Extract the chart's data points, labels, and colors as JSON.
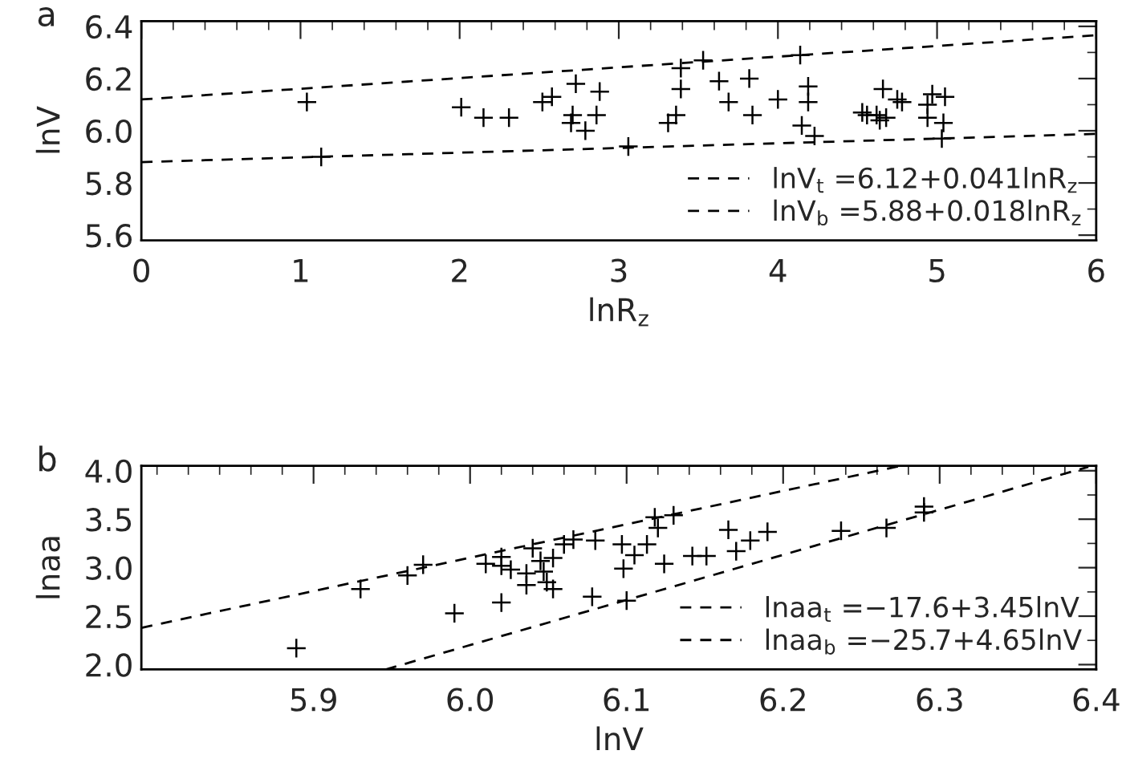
{
  "chart_data": [
    {
      "type": "scatter",
      "xlabel": "lnR$_{z}$",
      "ylabel": "lnV",
      "annotations": [
        "a"
      ],
      "xlim": [
        0,
        6
      ],
      "xticks": [
        0,
        1,
        2,
        3,
        4,
        5,
        6
      ],
      "ylim": [
        5.58,
        6.42
      ],
      "yticks": [
        5.6,
        5.8,
        {
          "value": 6,
          "label": "6.0"
        },
        6.2,
        6.4
      ],
      "grid": false,
      "legend": "bottom right",
      "marker": "cross",
      "series": [
        {
          "color": "#000000",
          "x": [
            1.04,
            1.13,
            2.01,
            2.15,
            2.31,
            2.52,
            2.58,
            2.73,
            2.88,
            2.71,
            2.7,
            2.79,
            2.86,
            3.06,
            3.31,
            3.36,
            3.39,
            3.39,
            3.53,
            3.63,
            3.69,
            3.82,
            3.84,
            4.0,
            4.14,
            4.19,
            4.19,
            4.15,
            4.23,
            4.53,
            4.56,
            4.62,
            4.64,
            4.68,
            4.66,
            4.75,
            4.78,
            4.94,
            4.94,
            4.97,
            5.05,
            5.04,
            5.03
          ],
          "values": [
            6.11,
            5.9,
            6.09,
            6.05,
            6.05,
            6.11,
            6.13,
            6.18,
            6.15,
            6.06,
            6.03,
            6.0,
            6.06,
            5.94,
            6.03,
            6.06,
            6.16,
            6.24,
            6.27,
            6.19,
            6.11,
            6.2,
            6.06,
            6.12,
            6.29,
            6.17,
            6.11,
            6.02,
            5.98,
            6.07,
            6.06,
            6.06,
            6.04,
            6.05,
            6.16,
            6.12,
            6.11,
            6.1,
            6.05,
            6.14,
            6.13,
            6.03,
            5.97
          ]
        },
        {
          "type": "line",
          "name": "lnV$_{t}$ =6.12+0.041lnR$_{z}$",
          "color": "#000000",
          "line_style": "dashed",
          "marker": "none",
          "x": [
            0,
            6
          ],
          "values": [
            6.12,
            6.366
          ]
        },
        {
          "type": "line",
          "name": "lnV$_{b}$ =5.88+0.018lnR$_{z}$",
          "color": "#000000",
          "line_style": "dashed",
          "marker": "none",
          "x": [
            0,
            6
          ],
          "values": [
            5.88,
            5.988
          ]
        }
      ]
    },
    {
      "type": "scatter",
      "xlabel": "lnV",
      "ylabel": "lnaa",
      "annotations": [
        "b"
      ],
      "xlim": [
        5.79,
        6.4
      ],
      "xticks": [
        5.9,
        {
          "value": 6,
          "label": "6.0"
        },
        6.1,
        6.2,
        6.3,
        6.4
      ],
      "ylim": [
        1.95,
        4.05
      ],
      "yticks": [
        {
          "value": 2,
          "label": "2.0"
        },
        2.5,
        {
          "value": 3,
          "label": "3.0"
        },
        3.5,
        {
          "value": 4,
          "label": "4.0"
        }
      ],
      "grid": false,
      "legend": "bottom right",
      "marker": "cross",
      "series": [
        {
          "color": "#000000",
          "x": [
            5.889,
            5.93,
            5.96,
            5.97,
            5.99,
            6.01,
            6.02,
            6.02,
            6.02,
            6.026,
            6.036,
            6.036,
            6.04,
            6.045,
            6.047,
            6.049,
            6.053,
            6.053,
            6.06,
            6.066,
            6.08,
            6.078,
            6.097,
            6.098,
            6.1,
            6.105,
            6.113,
            6.118,
            6.12,
            6.13,
            6.124,
            6.142,
            6.151,
            6.165,
            6.17,
            6.179,
            6.19,
            6.237,
            6.266,
            6.29,
            6.29
          ],
          "values": [
            2.17,
            2.78,
            2.92,
            3.03,
            2.53,
            3.04,
            2.64,
            3.11,
            3.02,
            2.98,
            2.94,
            2.82,
            3.2,
            3.07,
            2.96,
            2.85,
            2.78,
            3.1,
            3.24,
            3.29,
            3.28,
            2.7,
            3.24,
            2.99,
            2.66,
            3.13,
            3.24,
            3.52,
            3.41,
            3.54,
            3.04,
            3.12,
            3.12,
            3.39,
            3.17,
            3.28,
            3.37,
            3.38,
            3.41,
            3.63,
            3.57
          ]
        },
        {
          "type": "line",
          "name": "lnaa$_{t}$ =−17.6+3.45lnV",
          "color": "#000000",
          "line_style": "dashed",
          "marker": "none",
          "x": [
            5.79,
            6.275
          ],
          "values": [
            2.38,
            4.05
          ]
        },
        {
          "type": "line",
          "name": "lnaa$_{b}$ =−25.7+4.65lnV",
          "color": "#000000",
          "line_style": "dashed",
          "marker": "none",
          "x": [
            5.946,
            6.395
          ],
          "values": [
            1.95,
            4.04
          ]
        }
      ]
    }
  ]
}
